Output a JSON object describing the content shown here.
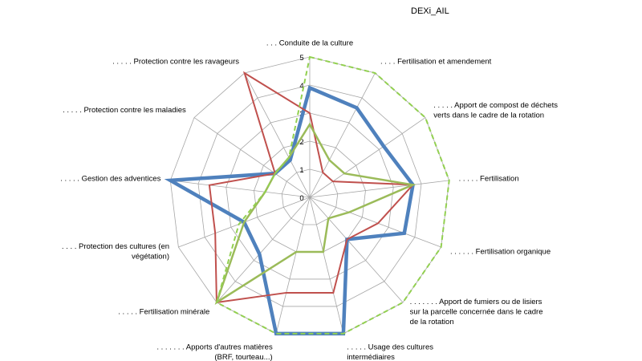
{
  "chart_data": {
    "type": "radar",
    "title": "DEXi_AIL",
    "scale": {
      "min": 0,
      "max": 5,
      "ticks": [
        "0",
        "1",
        "2",
        "3",
        "4",
        "5"
      ]
    },
    "axes": [
      ". . . Conduite de la culture",
      ". . . . Fertilisation et amendement",
      ". . . . . Apport de compost de déchets\nverts dans le cadre de la rotation",
      ". . . . . Fertilisation",
      ". . . . . . Fertilisation organique",
      ". . . . . . . Apport de fumiers ou de lisiers\nsur la parcelle concernée dans le cadre\nde la rotation",
      ". . . . . Usage des cultures\nintermédiaires",
      ". . . . . . . Apports d'autres matières\n(BRF, tourteau...)",
      ". . . . . Fertilisation minérale",
      ". . . . Protection des cultures (en\nvégétation)",
      ". . . . . Gestion des adventices",
      ". . . . . Protection contre les maladies",
      ". . . . . Protection contre les ravageurs"
    ],
    "series": [
      {
        "color": "#4f81bd",
        "width": 4.5,
        "dash": "",
        "values": [
          3.9,
          3.6,
          3.2,
          3.7,
          3.6,
          2.0,
          5.0,
          5.0,
          2.7,
          2.5,
          5.0,
          1.5,
          1.5
        ]
      },
      {
        "color": "#c0504d",
        "width": 2,
        "dash": "",
        "values": [
          3.0,
          1.0,
          1.0,
          3.7,
          2.6,
          2.0,
          3.5,
          3.5,
          5.0,
          3.6,
          3.6,
          1.5,
          5.0
        ]
      },
      {
        "color": "#9bbb59",
        "width": 2.5,
        "dash": "",
        "values": [
          2.6,
          1.5,
          1.5,
          3.7,
          1.5,
          1.0,
          2.0,
          2.0,
          5.0,
          2.5,
          1.6,
          1.5,
          1.6
        ]
      },
      {
        "color": "#92d050",
        "width": 2,
        "dash": "6,4",
        "values": [
          5.0,
          5.0,
          5.0,
          5.0,
          5.0,
          5.0,
          5.0,
          5.0,
          5.0,
          2.7,
          1.6,
          1.5,
          1.6
        ]
      }
    ]
  }
}
